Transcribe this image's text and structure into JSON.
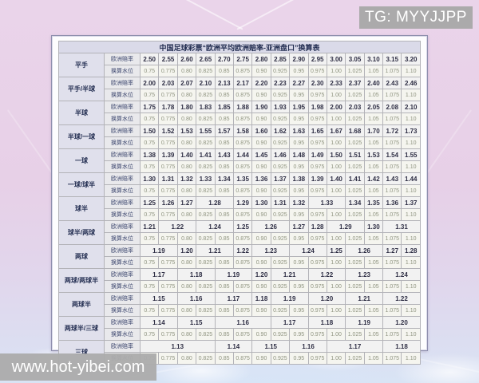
{
  "banners": {
    "tg": "TG: MYYJJPP",
    "site": "www.hot-yibei.com"
  },
  "colors": {
    "background_pink": "#e8d2e8",
    "sky_blue": "#d9e3f4",
    "banner_gray": "#a8a8a8",
    "table_header_lavender": "#dadae9",
    "odds_text": "#2e2e44",
    "water_text": "#8f9480"
  },
  "table": {
    "title": "中国足球彩票“欧洲平均欧洲赔率-亚洲盘口”换算表",
    "sub_labels": {
      "odds": "欧洲赔率",
      "water": "换算水位"
    },
    "water_values": [
      "0.75",
      "0.775",
      "0.80",
      "0.825",
      "0.85",
      "0.875",
      "0.90",
      "0.925",
      "0.95",
      "0.975",
      "1.00",
      "1.025",
      "1.05",
      "1.075",
      "1.10"
    ],
    "rows": [
      {
        "label": "平手",
        "odds": [
          [
            "2.50",
            1
          ],
          [
            "2.55",
            1
          ],
          [
            "2.60",
            1
          ],
          [
            "2.65",
            1
          ],
          [
            "2.70",
            1
          ],
          [
            "2.75",
            1
          ],
          [
            "2.80",
            1
          ],
          [
            "2.85",
            1
          ],
          [
            "2.90",
            1
          ],
          [
            "2.95",
            1
          ],
          [
            "3.00",
            1
          ],
          [
            "3.05",
            1
          ],
          [
            "3.10",
            1
          ],
          [
            "3.15",
            1
          ],
          [
            "3.20",
            1
          ]
        ]
      },
      {
        "label": "平手/半球",
        "odds": [
          [
            "2.00",
            1
          ],
          [
            "2.03",
            1
          ],
          [
            "2.07",
            1
          ],
          [
            "2.10",
            1
          ],
          [
            "2.13",
            1
          ],
          [
            "2.17",
            1
          ],
          [
            "2.20",
            1
          ],
          [
            "2.23",
            1
          ],
          [
            "2.27",
            1
          ],
          [
            "2.30",
            1
          ],
          [
            "2.33",
            1
          ],
          [
            "2.37",
            1
          ],
          [
            "2.40",
            1
          ],
          [
            "2.43",
            1
          ],
          [
            "2.46",
            1
          ]
        ]
      },
      {
        "label": "半球",
        "odds": [
          [
            "1.75",
            1
          ],
          [
            "1.78",
            1
          ],
          [
            "1.80",
            1
          ],
          [
            "1.83",
            1
          ],
          [
            "1.85",
            1
          ],
          [
            "1.88",
            1
          ],
          [
            "1.90",
            1
          ],
          [
            "1.93",
            1
          ],
          [
            "1.95",
            1
          ],
          [
            "1.98",
            1
          ],
          [
            "2.00",
            1
          ],
          [
            "2.03",
            1
          ],
          [
            "2.05",
            1
          ],
          [
            "2.08",
            1
          ],
          [
            "2.10",
            1
          ]
        ]
      },
      {
        "label": "半球/一球",
        "odds": [
          [
            "1.50",
            1
          ],
          [
            "1.52",
            1
          ],
          [
            "1.53",
            1
          ],
          [
            "1.55",
            1
          ],
          [
            "1.57",
            1
          ],
          [
            "1.58",
            1
          ],
          [
            "1.60",
            1
          ],
          [
            "1.62",
            1
          ],
          [
            "1.63",
            1
          ],
          [
            "1.65",
            1
          ],
          [
            "1.67",
            1
          ],
          [
            "1.68",
            1
          ],
          [
            "1.70",
            1
          ],
          [
            "1.72",
            1
          ],
          [
            "1.73",
            1
          ]
        ]
      },
      {
        "label": "一球",
        "odds": [
          [
            "1.38",
            1
          ],
          [
            "1.39",
            1
          ],
          [
            "1.40",
            1
          ],
          [
            "1.41",
            1
          ],
          [
            "1.43",
            1
          ],
          [
            "1.44",
            1
          ],
          [
            "1.45",
            1
          ],
          [
            "1.46",
            1
          ],
          [
            "1.48",
            1
          ],
          [
            "1.49",
            1
          ],
          [
            "1.50",
            1
          ],
          [
            "1.51",
            1
          ],
          [
            "1.53",
            1
          ],
          [
            "1.54",
            1
          ],
          [
            "1.55",
            1
          ]
        ]
      },
      {
        "label": "一球/球半",
        "odds": [
          [
            "1.30",
            1
          ],
          [
            "1.31",
            1
          ],
          [
            "1.32",
            1
          ],
          [
            "1.33",
            1
          ],
          [
            "1.34",
            1
          ],
          [
            "1.35",
            1
          ],
          [
            "1.36",
            1
          ],
          [
            "1.37",
            1
          ],
          [
            "1.38",
            1
          ],
          [
            "1.39",
            1
          ],
          [
            "1.40",
            1
          ],
          [
            "1.41",
            1
          ],
          [
            "1.42",
            1
          ],
          [
            "1.43",
            1
          ],
          [
            "1.44",
            1
          ]
        ]
      },
      {
        "label": "球半",
        "odds": [
          [
            "1.25",
            1
          ],
          [
            "1.26",
            1
          ],
          [
            "1.27",
            1
          ],
          [
            "1.28",
            2
          ],
          [
            "1.29",
            1
          ],
          [
            "1.30",
            1
          ],
          [
            "1.31",
            1
          ],
          [
            "1.32",
            1
          ],
          [
            "1.33",
            2
          ],
          [
            "1.34",
            1
          ],
          [
            "1.35",
            1
          ],
          [
            "1.36",
            1
          ],
          [
            "1.37",
            1
          ]
        ]
      },
      {
        "label": "球半/两球",
        "odds": [
          [
            "1.21",
            1
          ],
          [
            "1.22",
            2
          ],
          [
            "1.24",
            2
          ],
          [
            "1.25",
            1
          ],
          [
            "1.26",
            2
          ],
          [
            "1.27",
            1
          ],
          [
            "1.28",
            1
          ],
          [
            "1.29",
            2
          ],
          [
            "1.30",
            1
          ],
          [
            "1.31",
            2
          ]
        ]
      },
      {
        "label": "两球",
        "odds": [
          [
            "1.19",
            2
          ],
          [
            "1.20",
            1
          ],
          [
            "1.21",
            2
          ],
          [
            "1.22",
            1
          ],
          [
            "1.23",
            2
          ],
          [
            "1.24",
            2
          ],
          [
            "1.25",
            1
          ],
          [
            "1.26",
            2
          ],
          [
            "1.27",
            1
          ],
          [
            "1.28",
            1
          ]
        ]
      },
      {
        "label": "两球/两球半",
        "odds": [
          [
            "1.17",
            2
          ],
          [
            "1.18",
            2
          ],
          [
            "1.19",
            2
          ],
          [
            "1.20",
            1
          ],
          [
            "1.21",
            2
          ],
          [
            "1.22",
            2
          ],
          [
            "1.23",
            2
          ],
          [
            "1.24",
            2
          ]
        ]
      },
      {
        "label": "两球半",
        "odds": [
          [
            "1.15",
            2
          ],
          [
            "1.16",
            2
          ],
          [
            "1.17",
            2
          ],
          [
            "1.18",
            1
          ],
          [
            "1.19",
            2
          ],
          [
            "1.20",
            2
          ],
          [
            "1.21",
            2
          ],
          [
            "1.22",
            2
          ]
        ]
      },
      {
        "label": "两球半/三球",
        "odds": [
          [
            "1.14",
            2
          ],
          [
            "1.15",
            2
          ],
          [
            "1.16",
            3
          ],
          [
            "1.17",
            2
          ],
          [
            "1.18",
            2
          ],
          [
            "1.19",
            2
          ],
          [
            "1.20",
            2
          ]
        ]
      },
      {
        "label": "三球",
        "odds": [
          [
            "1.13",
            4
          ],
          [
            "1.14",
            2
          ],
          [
            "1.15",
            2
          ],
          [
            "1.16",
            2
          ],
          [
            "1.17",
            3
          ],
          [
            "1.18",
            2
          ]
        ]
      }
    ]
  }
}
